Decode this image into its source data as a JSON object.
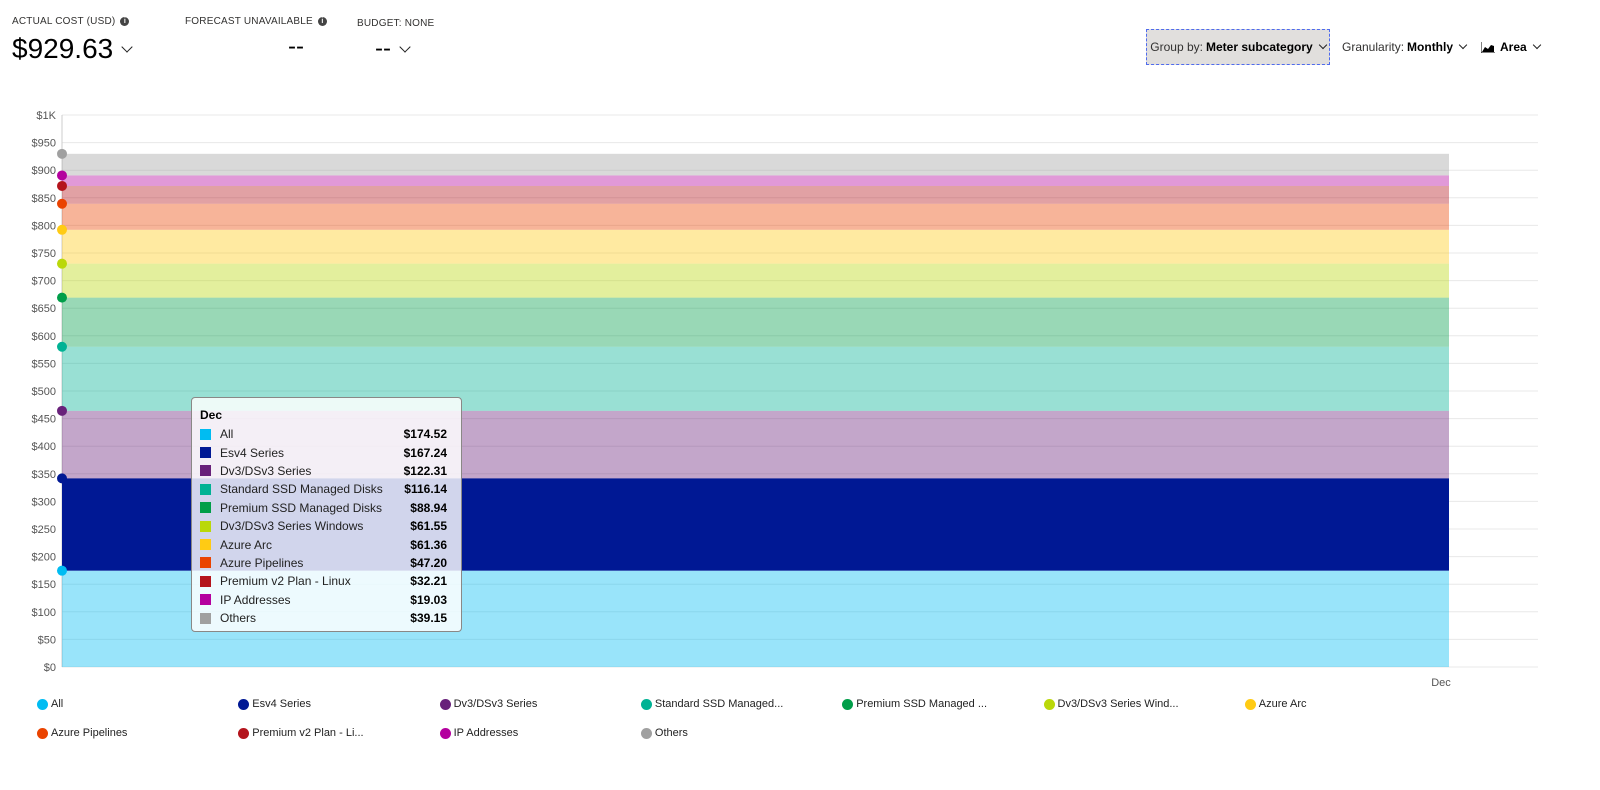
{
  "kpis": {
    "actual_cost": {
      "label": "ACTUAL COST (USD)",
      "value": "$929.63"
    },
    "forecast": {
      "label": "FORECAST UNAVAILABLE",
      "value": "--"
    },
    "budget": {
      "label": "BUDGET: NONE",
      "value": "--"
    }
  },
  "controls": {
    "group_by": {
      "label": "Group by:",
      "value": "Meter subcategory"
    },
    "granularity": {
      "label": "Granularity:",
      "value": "Monthly"
    },
    "chart_type": {
      "value": "Area",
      "icon": "area-chart-icon"
    }
  },
  "chart_data": {
    "type": "area",
    "stacked": true,
    "categories": [
      "Dec"
    ],
    "ylim": [
      0,
      1000
    ],
    "yticks": [
      "$0",
      "$50",
      "$100",
      "$150",
      "$200",
      "$250",
      "$300",
      "$350",
      "$400",
      "$450",
      "$500",
      "$550",
      "$600",
      "$650",
      "$700",
      "$750",
      "$800",
      "$850",
      "$900",
      "$950",
      "$1K"
    ],
    "grid": true,
    "legend_position": "bottom",
    "series": [
      {
        "name": "All",
        "legend": "All",
        "value": 174.52,
        "display": "$174.52",
        "color": "#00bcf2"
      },
      {
        "name": "Esv4 Series",
        "legend": "Esv4 Series",
        "value": 167.24,
        "display": "$167.24",
        "color": "#001894"
      },
      {
        "name": "Dv3/DSv3 Series",
        "legend": "Dv3/DSv3 Series",
        "value": 122.31,
        "display": "$122.31",
        "color": "#68217a"
      },
      {
        "name": "Standard SSD Managed Disks",
        "legend": "Standard SSD Managed...",
        "value": 116.14,
        "display": "$116.14",
        "color": "#00b294"
      },
      {
        "name": "Premium SSD Managed Disks",
        "legend": "Premium SSD Managed ...",
        "value": 88.94,
        "display": "$88.94",
        "color": "#009e49"
      },
      {
        "name": "Dv3/DSv3 Series Windows",
        "legend": "Dv3/DSv3 Series Wind...",
        "value": 61.55,
        "display": "$61.55",
        "color": "#bad80a"
      },
      {
        "name": "Azure Arc",
        "legend": "Azure Arc",
        "value": 61.36,
        "display": "$61.36",
        "color": "#ffcb14"
      },
      {
        "name": "Azure Pipelines",
        "legend": "Azure Pipelines",
        "value": 47.2,
        "display": "$47.20",
        "color": "#ea4300"
      },
      {
        "name": "Premium v2 Plan - Linux",
        "legend": "Premium v2 Plan - Li...",
        "value": 32.21,
        "display": "$32.21",
        "color": "#b4141c"
      },
      {
        "name": "IP Addresses",
        "legend": "IP Addresses",
        "value": 19.03,
        "display": "$19.03",
        "color": "#b4009e"
      },
      {
        "name": "Others",
        "legend": "Others",
        "value": 39.15,
        "display": "$39.15",
        "color": "#a0a0a0"
      }
    ],
    "tooltip": {
      "title": "Dec"
    }
  }
}
